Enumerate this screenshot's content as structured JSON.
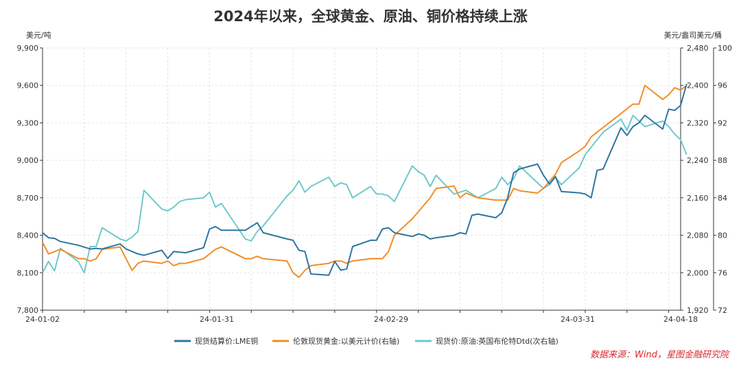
{
  "source_text": "数据来源：Wind，星图金融研究院",
  "chart_data": {
    "type": "line",
    "title": "2024年以来，全球黄金、原油、铜价格持续上涨",
    "y_left": {
      "unit": "美元/吨",
      "range": [
        7800,
        9900
      ],
      "ticks": [
        "7,800",
        "8,100",
        "8,400",
        "8,700",
        "9,000",
        "9,300",
        "9,600",
        "9,900"
      ]
    },
    "y_right": {
      "unit": "美元/盎司",
      "range": [
        1920,
        2480
      ],
      "ticks": [
        "1,920",
        "2,000",
        "2,080",
        "2,160",
        "2,240",
        "2,320",
        "2,400",
        "2,480"
      ]
    },
    "y_right2": {
      "unit": "美元/桶",
      "range": [
        72,
        100
      ],
      "ticks": [
        "72",
        "76",
        "80",
        "84",
        "88",
        "92",
        "96",
        "100"
      ]
    },
    "x_ticks": [
      "24-01-02",
      "24-01-31",
      "24-02-29",
      "24-03-31",
      "24-04-18"
    ],
    "x_range": [
      "2024-01-02",
      "2024-04-18"
    ],
    "grid": true,
    "legend_position": "bottom",
    "colors": {
      "copper": "#2e75a0",
      "gold": "#f28c28",
      "oil": "#6ec9cc"
    },
    "series": [
      {
        "name": "现货结算价:LME铜",
        "axis": "left",
        "color": "#2e75a0",
        "points": [
          [
            "2024-01-02",
            8420
          ],
          [
            "2024-01-03",
            8380
          ],
          [
            "2024-01-04",
            8375
          ],
          [
            "2024-01-05",
            8350
          ],
          [
            "2024-01-08",
            8320
          ],
          [
            "2024-01-09",
            8305
          ],
          [
            "2024-01-10",
            8290
          ],
          [
            "2024-01-11",
            8295
          ],
          [
            "2024-01-12",
            8290
          ],
          [
            "2024-01-15",
            8330
          ],
          [
            "2024-01-16",
            8290
          ],
          [
            "2024-01-17",
            8270
          ],
          [
            "2024-01-18",
            8250
          ],
          [
            "2024-01-19",
            8240
          ],
          [
            "2024-01-22",
            8280
          ],
          [
            "2024-01-23",
            8215
          ],
          [
            "2024-01-24",
            8270
          ],
          [
            "2024-01-25",
            8265
          ],
          [
            "2024-01-26",
            8260
          ],
          [
            "2024-01-29",
            8300
          ],
          [
            "2024-01-30",
            8450
          ],
          [
            "2024-01-31",
            8470
          ],
          [
            "2024-02-01",
            8440
          ],
          [
            "2024-02-05",
            8440
          ],
          [
            "2024-02-06",
            8470
          ],
          [
            "2024-02-07",
            8500
          ],
          [
            "2024-02-08",
            8420
          ],
          [
            "2024-02-12",
            8370
          ],
          [
            "2024-02-13",
            8360
          ],
          [
            "2024-02-14",
            8280
          ],
          [
            "2024-02-15",
            8270
          ],
          [
            "2024-02-16",
            8090
          ],
          [
            "2024-02-19",
            8080
          ],
          [
            "2024-02-20",
            8190
          ],
          [
            "2024-02-21",
            8120
          ],
          [
            "2024-02-22",
            8130
          ],
          [
            "2024-02-23",
            8310
          ],
          [
            "2024-02-26",
            8360
          ],
          [
            "2024-02-27",
            8360
          ],
          [
            "2024-02-28",
            8450
          ],
          [
            "2024-02-29",
            8460
          ],
          [
            "2024-03-01",
            8420
          ],
          [
            "2024-03-04",
            8390
          ],
          [
            "2024-03-05",
            8410
          ],
          [
            "2024-03-06",
            8400
          ],
          [
            "2024-03-07",
            8370
          ],
          [
            "2024-03-08",
            8380
          ],
          [
            "2024-03-11",
            8400
          ],
          [
            "2024-03-12",
            8420
          ],
          [
            "2024-03-13",
            8410
          ],
          [
            "2024-03-14",
            8560
          ],
          [
            "2024-03-15",
            8570
          ],
          [
            "2024-03-18",
            8540
          ],
          [
            "2024-03-19",
            8580
          ],
          [
            "2024-03-20",
            8700
          ],
          [
            "2024-03-21",
            8900
          ],
          [
            "2024-03-22",
            8930
          ],
          [
            "2024-03-25",
            8970
          ],
          [
            "2024-03-26",
            8880
          ],
          [
            "2024-03-27",
            8810
          ],
          [
            "2024-03-28",
            8870
          ],
          [
            "2024-03-29",
            8750
          ],
          [
            "2024-04-01",
            8740
          ],
          [
            "2024-04-02",
            8730
          ],
          [
            "2024-04-03",
            8700
          ],
          [
            "2024-04-04",
            8920
          ],
          [
            "2024-04-05",
            8930
          ],
          [
            "2024-04-08",
            9260
          ],
          [
            "2024-04-09",
            9200
          ],
          [
            "2024-04-10",
            9270
          ],
          [
            "2024-04-11",
            9300
          ],
          [
            "2024-04-12",
            9360
          ],
          [
            "2024-04-15",
            9250
          ],
          [
            "2024-04-16",
            9410
          ],
          [
            "2024-04-17",
            9400
          ],
          [
            "2024-04-18",
            9440
          ],
          [
            "2024-04-19",
            9610
          ]
        ]
      },
      {
        "name": "伦敦现货黄金:以美元计价(右轴)",
        "axis": "right",
        "color": "#f28c28",
        "points": [
          [
            "2024-01-02",
            2065
          ],
          [
            "2024-01-03",
            2040
          ],
          [
            "2024-01-04",
            2045
          ],
          [
            "2024-01-05",
            2050
          ],
          [
            "2024-01-08",
            2030
          ],
          [
            "2024-01-09",
            2030
          ],
          [
            "2024-01-10",
            2025
          ],
          [
            "2024-01-11",
            2030
          ],
          [
            "2024-01-12",
            2050
          ],
          [
            "2024-01-15",
            2055
          ],
          [
            "2024-01-16",
            2030
          ],
          [
            "2024-01-17",
            2005
          ],
          [
            "2024-01-18",
            2020
          ],
          [
            "2024-01-19",
            2025
          ],
          [
            "2024-01-22",
            2020
          ],
          [
            "2024-01-23",
            2025
          ],
          [
            "2024-01-24",
            2015
          ],
          [
            "2024-01-25",
            2020
          ],
          [
            "2024-01-26",
            2020
          ],
          [
            "2024-01-29",
            2030
          ],
          [
            "2024-01-30",
            2040
          ],
          [
            "2024-01-31",
            2050
          ],
          [
            "2024-02-01",
            2055
          ],
          [
            "2024-02-05",
            2030
          ],
          [
            "2024-02-06",
            2030
          ],
          [
            "2024-02-07",
            2035
          ],
          [
            "2024-02-08",
            2030
          ],
          [
            "2024-02-12",
            2025
          ],
          [
            "2024-02-13",
            2000
          ],
          [
            "2024-02-14",
            1990
          ],
          [
            "2024-02-15",
            2005
          ],
          [
            "2024-02-16",
            2015
          ],
          [
            "2024-02-19",
            2020
          ],
          [
            "2024-02-20",
            2025
          ],
          [
            "2024-02-21",
            2025
          ],
          [
            "2024-02-22",
            2020
          ],
          [
            "2024-02-23",
            2025
          ],
          [
            "2024-02-26",
            2030
          ],
          [
            "2024-02-27",
            2030
          ],
          [
            "2024-02-28",
            2030
          ],
          [
            "2024-02-29",
            2045
          ],
          [
            "2024-03-01",
            2080
          ],
          [
            "2024-03-04",
            2115
          ],
          [
            "2024-03-05",
            2130
          ],
          [
            "2024-03-06",
            2145
          ],
          [
            "2024-03-07",
            2160
          ],
          [
            "2024-03-08",
            2180
          ],
          [
            "2024-03-11",
            2185
          ],
          [
            "2024-03-12",
            2160
          ],
          [
            "2024-03-13",
            2170
          ],
          [
            "2024-03-14",
            2165
          ],
          [
            "2024-03-15",
            2160
          ],
          [
            "2024-03-18",
            2155
          ],
          [
            "2024-03-19",
            2155
          ],
          [
            "2024-03-20",
            2155
          ],
          [
            "2024-03-21",
            2180
          ],
          [
            "2024-03-22",
            2175
          ],
          [
            "2024-03-25",
            2170
          ],
          [
            "2024-03-26",
            2180
          ],
          [
            "2024-03-27",
            2195
          ],
          [
            "2024-03-28",
            2210
          ],
          [
            "2024-03-29",
            2235
          ],
          [
            "2024-04-01",
            2260
          ],
          [
            "2024-04-02",
            2270
          ],
          [
            "2024-04-03",
            2290
          ],
          [
            "2024-04-04",
            2300
          ],
          [
            "2024-04-05",
            2310
          ],
          [
            "2024-04-08",
            2340
          ],
          [
            "2024-04-09",
            2350
          ],
          [
            "2024-04-10",
            2360
          ],
          [
            "2024-04-11",
            2360
          ],
          [
            "2024-04-12",
            2400
          ],
          [
            "2024-04-15",
            2370
          ],
          [
            "2024-04-16",
            2380
          ],
          [
            "2024-04-17",
            2395
          ],
          [
            "2024-04-18",
            2390
          ],
          [
            "2024-04-19",
            2400
          ]
        ]
      },
      {
        "name": "现货价:原油:英国布伦特Dtd(次右轴)",
        "axis": "right2",
        "color": "#6ec9cc",
        "points": [
          [
            "2024-01-02",
            76.0
          ],
          [
            "2024-01-03",
            77.2
          ],
          [
            "2024-01-04",
            76.2
          ],
          [
            "2024-01-05",
            78.6
          ],
          [
            "2024-01-08",
            77.2
          ],
          [
            "2024-01-09",
            76.0
          ],
          [
            "2024-01-10",
            78.8
          ],
          [
            "2024-01-11",
            78.8
          ],
          [
            "2024-01-12",
            80.8
          ],
          [
            "2024-01-15",
            79.6
          ],
          [
            "2024-01-16",
            79.4
          ],
          [
            "2024-01-17",
            79.8
          ],
          [
            "2024-01-18",
            80.4
          ],
          [
            "2024-01-19",
            84.8
          ],
          [
            "2024-01-22",
            82.8
          ],
          [
            "2024-01-23",
            82.6
          ],
          [
            "2024-01-24",
            83.0
          ],
          [
            "2024-01-25",
            83.6
          ],
          [
            "2024-01-26",
            83.8
          ],
          [
            "2024-01-29",
            84.0
          ],
          [
            "2024-01-30",
            84.6
          ],
          [
            "2024-01-31",
            83.0
          ],
          [
            "2024-02-01",
            83.4
          ],
          [
            "2024-02-05",
            79.6
          ],
          [
            "2024-02-06",
            79.4
          ],
          [
            "2024-02-07",
            80.4
          ],
          [
            "2024-02-08",
            81.0
          ],
          [
            "2024-02-12",
            84.2
          ],
          [
            "2024-02-13",
            84.8
          ],
          [
            "2024-02-14",
            85.8
          ],
          [
            "2024-02-15",
            84.6
          ],
          [
            "2024-02-16",
            85.2
          ],
          [
            "2024-02-19",
            86.2
          ],
          [
            "2024-02-20",
            85.2
          ],
          [
            "2024-02-21",
            85.6
          ],
          [
            "2024-02-22",
            85.4
          ],
          [
            "2024-02-23",
            84.0
          ],
          [
            "2024-02-26",
            85.2
          ],
          [
            "2024-02-27",
            84.4
          ],
          [
            "2024-02-28",
            84.4
          ],
          [
            "2024-02-29",
            84.2
          ],
          [
            "2024-03-01",
            83.6
          ],
          [
            "2024-03-04",
            87.4
          ],
          [
            "2024-03-05",
            86.8
          ],
          [
            "2024-03-06",
            86.4
          ],
          [
            "2024-03-07",
            85.2
          ],
          [
            "2024-03-08",
            86.4
          ],
          [
            "2024-03-11",
            84.4
          ],
          [
            "2024-03-12",
            84.6
          ],
          [
            "2024-03-13",
            84.8
          ],
          [
            "2024-03-14",
            84.4
          ],
          [
            "2024-03-15",
            84.0
          ],
          [
            "2024-03-18",
            85.0
          ],
          [
            "2024-03-19",
            86.2
          ],
          [
            "2024-03-20",
            85.4
          ],
          [
            "2024-03-21",
            86.0
          ],
          [
            "2024-03-22",
            87.4
          ],
          [
            "2024-03-25",
            85.6
          ],
          [
            "2024-03-26",
            85.0
          ],
          [
            "2024-03-27",
            85.4
          ],
          [
            "2024-03-28",
            86.2
          ],
          [
            "2024-03-29",
            85.4
          ],
          [
            "2024-04-01",
            87.2
          ],
          [
            "2024-04-02",
            88.6
          ],
          [
            "2024-04-03",
            89.4
          ],
          [
            "2024-04-04",
            90.2
          ],
          [
            "2024-04-05",
            91.0
          ],
          [
            "2024-04-08",
            92.4
          ],
          [
            "2024-04-09",
            91.2
          ],
          [
            "2024-04-10",
            92.8
          ],
          [
            "2024-04-11",
            92.2
          ],
          [
            "2024-04-12",
            91.6
          ],
          [
            "2024-04-15",
            92.2
          ],
          [
            "2024-04-16",
            91.6
          ],
          [
            "2024-04-17",
            90.8
          ],
          [
            "2024-04-18",
            90.2
          ],
          [
            "2024-04-19",
            88.6
          ]
        ]
      }
    ]
  }
}
